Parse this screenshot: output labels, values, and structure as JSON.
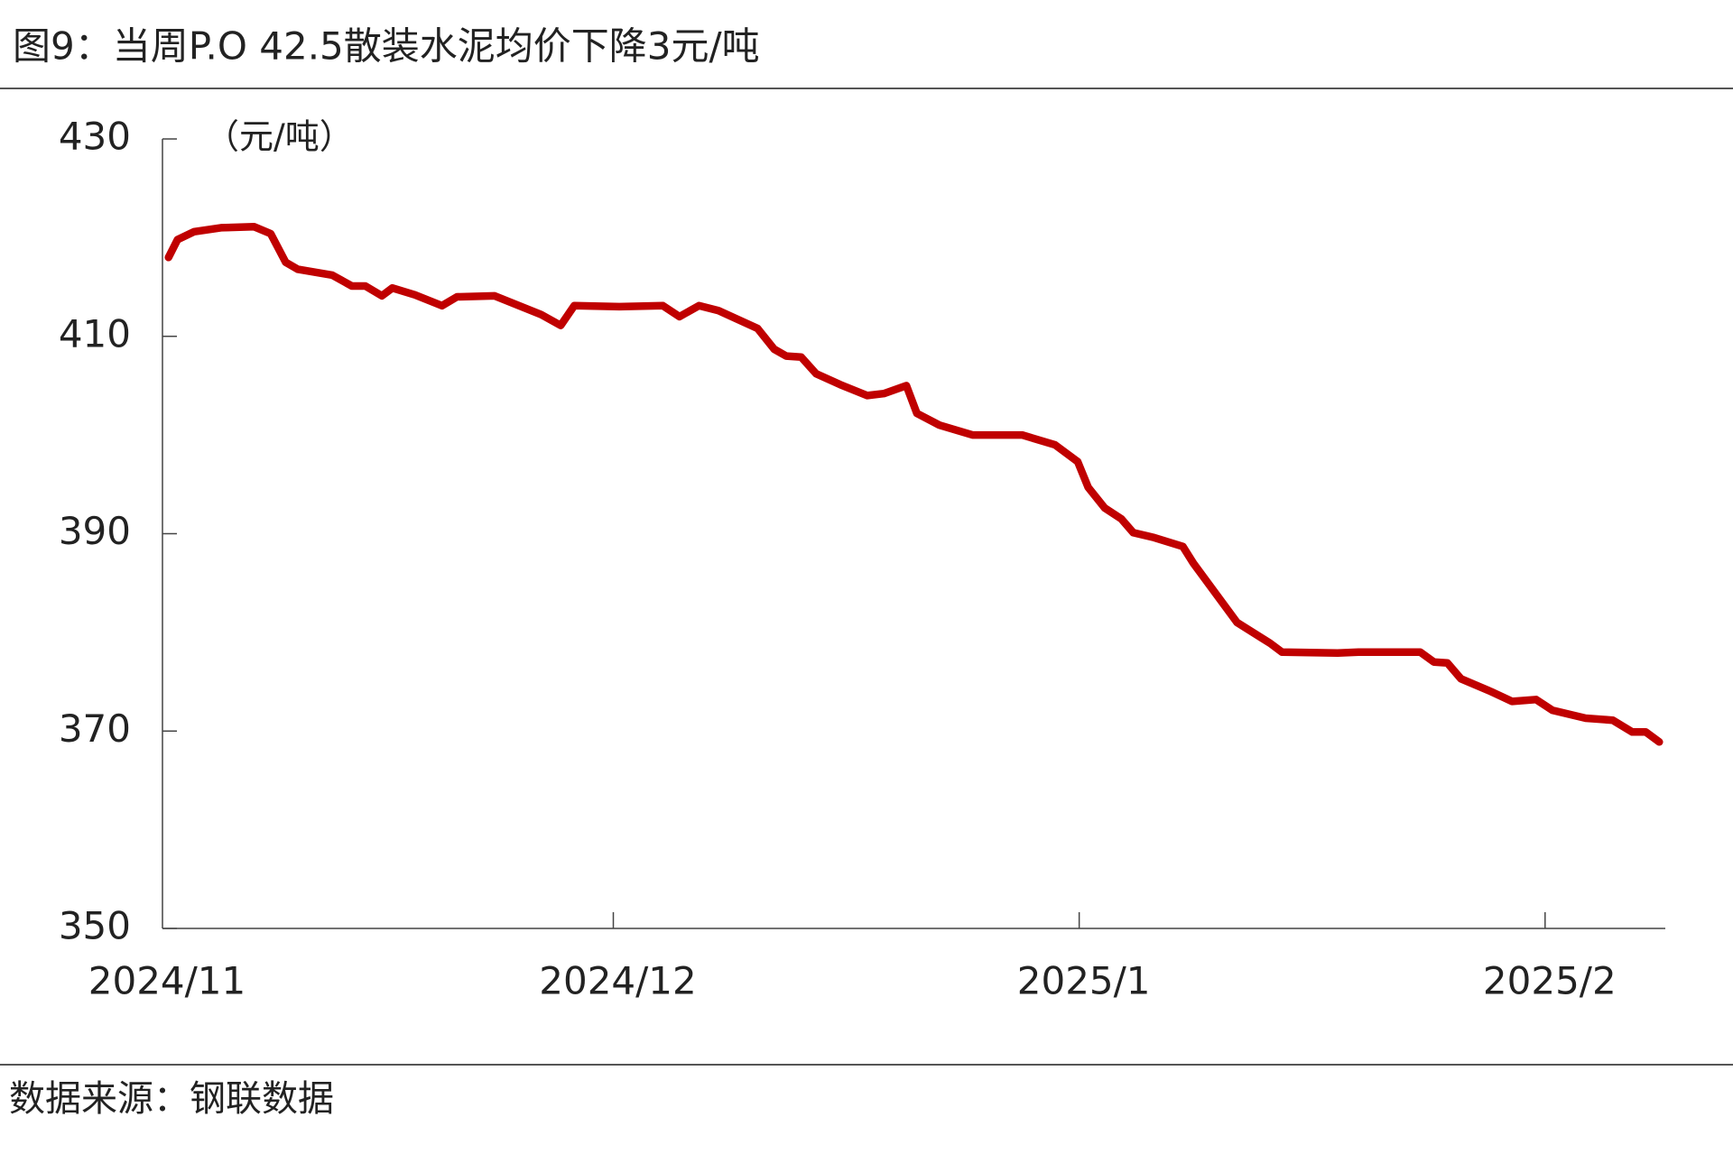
{
  "chart_data": {
    "type": "line",
    "title": "图9：当周P.O 42.5散装水泥均价下降3元/吨",
    "y_label": "（元/吨）",
    "source": "数据来源：钢联数据",
    "color": "#c00000",
    "x": [
      0.4,
      1.0,
      2.1,
      3.9,
      6.1,
      7.2,
      8.2,
      9.0,
      11.3,
      12.6,
      13.5,
      14.6,
      15.3,
      16.8,
      18.6,
      19.6,
      22.1,
      25.2,
      26.5,
      27.4,
      30.4,
      33.3,
      34.4,
      35.7,
      37.0,
      39.6,
      40.7,
      41.5,
      42.5,
      43.5,
      45.1,
      46.9,
      48.0,
      49.5,
      50.2,
      51.7,
      53.9,
      57.2,
      59.4,
      60.9,
      61.6,
      62.7,
      63.8,
      64.6,
      66.0,
      67.9,
      68.6,
      71.5,
      73.7,
      74.5,
      78.2,
      79.6,
      83.7,
      84.6,
      85.5,
      86.4,
      88.4,
      89.8,
      91.4,
      92.5,
      94.7,
      96.5,
      97.8,
      98.7,
      99.6
    ],
    "values": [
      418.0,
      419.8,
      420.6,
      421.0,
      421.1,
      420.4,
      417.5,
      416.8,
      416.2,
      415.1,
      415.1,
      414.1,
      414.9,
      414.2,
      413.1,
      414.0,
      414.1,
      412.2,
      411.1,
      413.1,
      413.0,
      413.1,
      412.0,
      413.1,
      412.6,
      410.8,
      408.7,
      408.0,
      407.9,
      406.2,
      405.1,
      404.0,
      404.2,
      405.0,
      402.2,
      401.0,
      400.0,
      400.0,
      399.0,
      397.3,
      394.7,
      392.6,
      391.5,
      390.1,
      389.6,
      388.7,
      387.0,
      381.0,
      378.9,
      378.0,
      377.9,
      378.0,
      378.0,
      377.0,
      376.9,
      375.3,
      374.0,
      373.0,
      373.2,
      372.1,
      371.3,
      371.1,
      369.9,
      369.9,
      368.9
    ],
    "xlim": [
      0,
      100
    ],
    "xticks": [
      {
        "value": 0,
        "label": "2024/11"
      },
      {
        "value": 30,
        "label": "2024/12"
      },
      {
        "value": 61,
        "label": "2025/1"
      },
      {
        "value": 92,
        "label": "2025/2"
      }
    ],
    "ylim": [
      350,
      430
    ],
    "yticks": [
      350,
      370,
      390,
      410,
      430
    ]
  }
}
